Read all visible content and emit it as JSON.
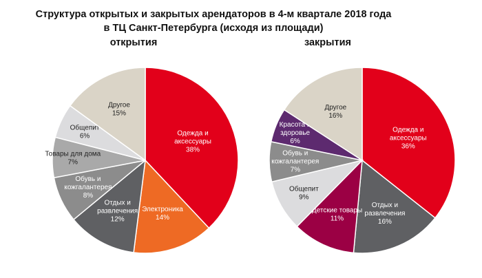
{
  "chart_data": [
    {
      "type": "pie",
      "title": "Структура открытых и закрытых арендаторов в 4-м квартале 2018 года в ТЦ Санкт-Петербурга (исходя из площади)",
      "subtitle": "открытия",
      "unit": "%",
      "slices": [
        {
          "label": "Одежда и аксессуары",
          "value": 38,
          "display": "38%",
          "color": "#e2001a"
        },
        {
          "label": "Электроника",
          "value": 14,
          "display": "14%",
          "color": "#ee6a24"
        },
        {
          "label": "Отдых и развлечения",
          "value": 12,
          "display": "12%",
          "color": "#5f6063"
        },
        {
          "label": "Обувь и кожгалантерея",
          "value": 8,
          "display": "8%",
          "color": "#8c8c8c"
        },
        {
          "label": "Товары для дома",
          "value": 7,
          "display": "7%",
          "color": "#a9a9a9"
        },
        {
          "label": "Общепит",
          "value": 6,
          "display": "6%",
          "color": "#dcdcde"
        },
        {
          "label": "Другое",
          "value": 15,
          "display": "15%",
          "color": "#dad4c7"
        }
      ]
    },
    {
      "type": "pie",
      "subtitle": "закрытия",
      "unit": "%",
      "slices": [
        {
          "label": "Одежда и аксессуары",
          "value": 36,
          "display": "36%",
          "color": "#e2001a"
        },
        {
          "label": "Отдых и развлечения",
          "value": 16,
          "display": "16%",
          "color": "#5f6063"
        },
        {
          "label": "Детские товары",
          "value": 11,
          "display": "11%",
          "color": "#9b0044"
        },
        {
          "label": "Общепит",
          "value": 9,
          "display": "9%",
          "color": "#dcdcde"
        },
        {
          "label": "Обувь и кожгалантерея",
          "value": 7,
          "display": "7%",
          "color": "#8c8c8c"
        },
        {
          "label": "Красота и здоровье",
          "value": 6,
          "display": "6%",
          "color": "#5d2a6f"
        },
        {
          "label": "Другое",
          "value": 16,
          "display": "16%",
          "color": "#dad4c7"
        }
      ]
    }
  ],
  "title_line1": "Структура открытых и закрытых арендаторов в 4-м квартале 2018 года",
  "title_line2": "в ТЦ Санкт-Петербурга (исходя из площади)"
}
